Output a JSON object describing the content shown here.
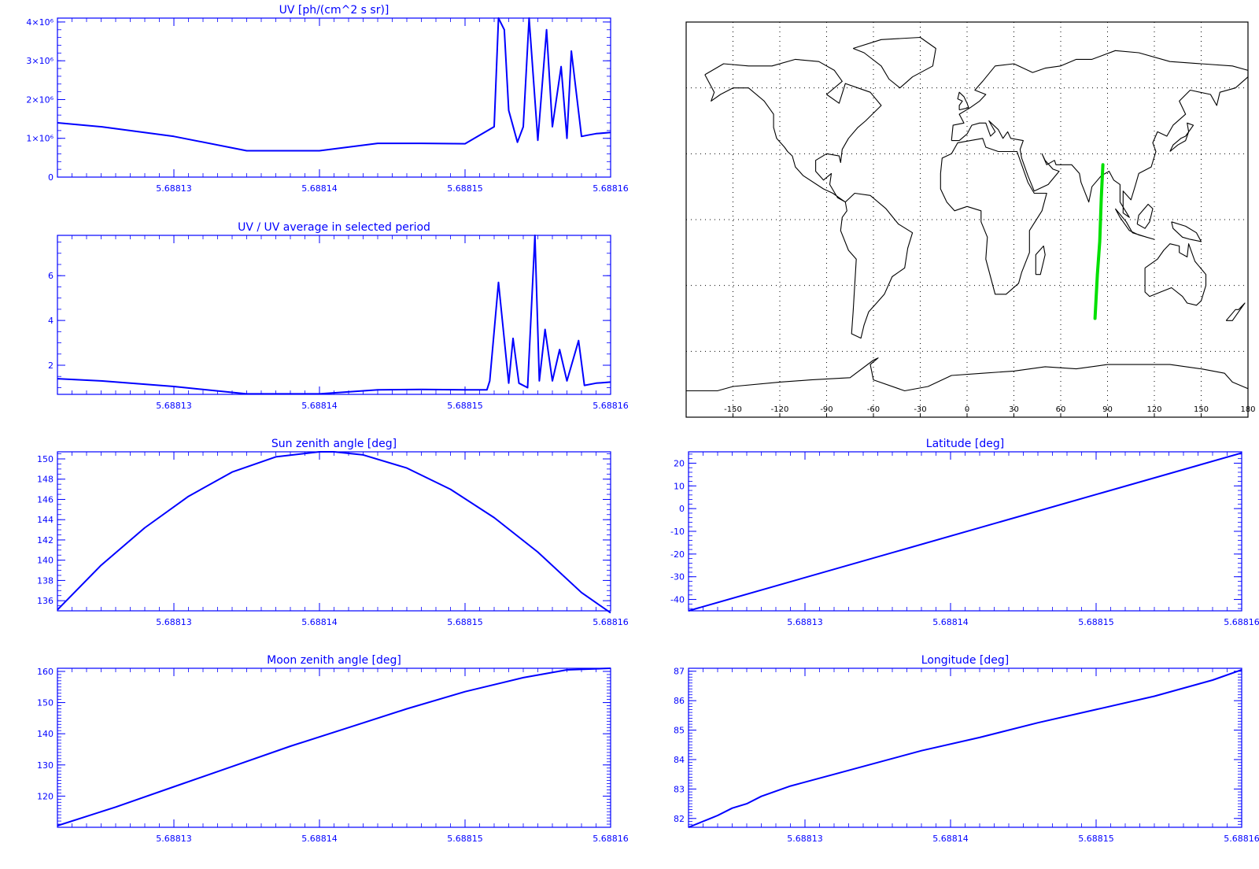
{
  "theme": {
    "axis_color": "#0000ff",
    "line_color": "#0000ff",
    "track_color": "#00e000",
    "map_color": "#000000"
  },
  "charts": [
    {
      "id": "uv",
      "type": "line",
      "title": "UV [ph/(cm^2 s sr)]",
      "xlabel": "",
      "ylabel": "",
      "xlim": [
        5.688122,
        5.68816
      ],
      "ylim": [
        0,
        4100000.0
      ],
      "xticks": [
        5.68813,
        5.68814,
        5.68815,
        5.68816
      ],
      "xtick_labels": [
        "5.68813",
        "5.68814",
        "5.68815",
        "5.68816"
      ],
      "yticks": [
        0,
        1000000.0,
        2000000.0,
        3000000.0,
        4000000.0
      ],
      "ytick_labels": [
        "0",
        "1×10⁶",
        "2×10⁶",
        "3×10⁶",
        "4×10⁶"
      ],
      "y_minor": 5,
      "series": [
        {
          "x": [
            5.688122,
            5.688125,
            5.68813,
            5.688135,
            5.68814,
            5.688144,
            5.688147,
            5.68815,
            5.688152,
            5.6881523,
            5.6881527,
            5.688153,
            5.6881536,
            5.688154,
            5.6881544,
            5.688155,
            5.6881556,
            5.688156,
            5.6881566,
            5.688157,
            5.6881573,
            5.688158,
            5.6881584,
            5.688159,
            5.68816
          ],
          "values": [
            1400000.0,
            1300000.0,
            1050000.0,
            680000.0,
            680000.0,
            870000.0,
            870000.0,
            860000.0,
            1300000.0,
            4100000.0,
            3800000.0,
            1720000.0,
            900000.0,
            1300000.0,
            4100000.0,
            950000.0,
            3800000.0,
            1300000.0,
            2850000.0,
            1000000.0,
            3250000.0,
            1050000.0,
            1080000.0,
            1120000.0,
            1150000.0
          ]
        }
      ]
    },
    {
      "id": "uvratio",
      "type": "line",
      "title": "UV / UV average in selected period",
      "xlabel": "",
      "ylabel": "",
      "xlim": [
        5.688122,
        5.68816
      ],
      "ylim": [
        0.7,
        7.8
      ],
      "xticks": [
        5.68813,
        5.68814,
        5.68815,
        5.68816
      ],
      "xtick_labels": [
        "5.68813",
        "5.68814",
        "5.68815",
        "5.68816"
      ],
      "yticks": [
        2,
        4,
        6
      ],
      "ytick_labels": [
        "2",
        "4",
        "6"
      ],
      "y_minor": 4,
      "series": [
        {
          "x": [
            5.688122,
            5.688125,
            5.68813,
            5.688135,
            5.68814,
            5.688144,
            5.688147,
            5.68815,
            5.6881515,
            5.6881517,
            5.6881523,
            5.688153,
            5.6881533,
            5.6881537,
            5.6881543,
            5.6881548,
            5.6881551,
            5.6881555,
            5.688156,
            5.6881565,
            5.688157,
            5.6881578,
            5.6881582,
            5.688159,
            5.68816
          ],
          "values": [
            1.4,
            1.3,
            1.05,
            0.72,
            0.72,
            0.9,
            0.92,
            0.9,
            0.9,
            1.3,
            5.7,
            1.2,
            3.2,
            1.2,
            1.0,
            7.8,
            1.3,
            3.6,
            1.3,
            2.7,
            1.3,
            3.1,
            1.1,
            1.2,
            1.25
          ]
        }
      ]
    },
    {
      "id": "sza",
      "type": "line",
      "title": "Sun zenith angle [deg]",
      "xlabel": "",
      "ylabel": "",
      "xlim": [
        5.688122,
        5.68816
      ],
      "ylim": [
        135,
        150.7
      ],
      "xticks": [
        5.68813,
        5.68814,
        5.68815,
        5.68816
      ],
      "xtick_labels": [
        "5.68813",
        "5.68814",
        "5.68815",
        "5.68816"
      ],
      "yticks": [
        136,
        138,
        140,
        142,
        144,
        146,
        148,
        150
      ],
      "ytick_labels": [
        "136",
        "138",
        "140",
        "142",
        "144",
        "146",
        "148",
        "150"
      ],
      "y_minor": 4,
      "series": [
        {
          "x": [
            5.688122,
            5.688125,
            5.688128,
            5.688131,
            5.688134,
            5.688137,
            5.68814,
            5.688141,
            5.688143,
            5.688146,
            5.688149,
            5.688152,
            5.688155,
            5.688158,
            5.68816
          ],
          "values": [
            135.1,
            139.5,
            143.2,
            146.3,
            148.7,
            150.2,
            150.7,
            150.7,
            150.4,
            149.1,
            147.0,
            144.2,
            140.8,
            136.8,
            134.8
          ]
        }
      ]
    },
    {
      "id": "lat",
      "type": "line",
      "title": "Latitude [deg]",
      "xlabel": "",
      "ylabel": "",
      "xlim": [
        5.688122,
        5.68816
      ],
      "ylim": [
        -45,
        25
      ],
      "xticks": [
        5.68813,
        5.68814,
        5.68815,
        5.68816
      ],
      "xtick_labels": [
        "5.68813",
        "5.68814",
        "5.68815",
        "5.68816"
      ],
      "yticks": [
        -40,
        -30,
        -20,
        -10,
        0,
        10,
        20
      ],
      "ytick_labels": [
        "-40",
        "-30",
        "-20",
        "-10",
        "0",
        "10",
        "20"
      ],
      "y_minor": 5,
      "series": [
        {
          "x": [
            5.688122,
            5.68816
          ],
          "values": [
            -45,
            24.5
          ]
        }
      ]
    },
    {
      "id": "mza",
      "type": "line",
      "title": "Moon zenith angle [deg]",
      "xlabel": "",
      "ylabel": "",
      "xlim": [
        5.688122,
        5.68816
      ],
      "ylim": [
        110,
        161
      ],
      "xticks": [
        5.68813,
        5.68814,
        5.68815,
        5.68816
      ],
      "xtick_labels": [
        "5.68813",
        "5.68814",
        "5.68815",
        "5.68816"
      ],
      "yticks": [
        120,
        130,
        140,
        150,
        160
      ],
      "ytick_labels": [
        "120",
        "130",
        "140",
        "150",
        "160"
      ],
      "y_minor": 10,
      "series": [
        {
          "x": [
            5.688122,
            5.688126,
            5.68813,
            5.688134,
            5.688138,
            5.688142,
            5.688146,
            5.68815,
            5.688154,
            5.688157,
            5.68816
          ],
          "values": [
            110.5,
            116.5,
            123,
            129.5,
            136,
            142,
            148,
            153.5,
            158,
            160.5,
            161
          ]
        }
      ]
    },
    {
      "id": "lon",
      "type": "line",
      "title": "Longitude [deg]",
      "xlabel": "",
      "ylabel": "",
      "xlim": [
        5.688122,
        5.68816
      ],
      "ylim": [
        81.7,
        87.1
      ],
      "xticks": [
        5.68813,
        5.68814,
        5.68815,
        5.68816
      ],
      "xtick_labels": [
        "5.68813",
        "5.68814",
        "5.68815",
        "5.68816"
      ],
      "yticks": [
        82,
        83,
        84,
        85,
        86,
        87
      ],
      "ytick_labels": [
        "82",
        "83",
        "84",
        "85",
        "86",
        "87"
      ],
      "y_minor": 10,
      "series": [
        {
          "x": [
            5.688122,
            5.688123,
            5.6881235,
            5.688124,
            5.688125,
            5.688126,
            5.688127,
            5.688129,
            5.688132,
            5.688135,
            5.688138,
            5.688142,
            5.688146,
            5.68815,
            5.688154,
            5.688158,
            5.68816
          ],
          "values": [
            81.7,
            81.9,
            82.0,
            82.1,
            82.35,
            82.5,
            82.75,
            83.1,
            83.5,
            83.9,
            84.3,
            84.75,
            85.25,
            85.7,
            86.15,
            86.7,
            87.05
          ]
        }
      ]
    }
  ],
  "map": {
    "type": "map",
    "xtick_labels": [
      "-150",
      "-120",
      "-90",
      "-60",
      "-30",
      "0",
      "30",
      "60",
      "90",
      "120",
      "150",
      "180"
    ],
    "xticks": [
      -150,
      -120,
      -90,
      -60,
      -30,
      0,
      30,
      60,
      90,
      120,
      150,
      180
    ],
    "lon_range": [
      -180,
      180
    ],
    "lat_range": [
      -90,
      90
    ],
    "grid_lat": [
      -60,
      -30,
      0,
      30,
      60
    ],
    "track": {
      "lon": [
        82,
        83.5,
        85,
        86,
        87
      ],
      "lat": [
        -45,
        -25,
        -10,
        10,
        25
      ]
    }
  }
}
